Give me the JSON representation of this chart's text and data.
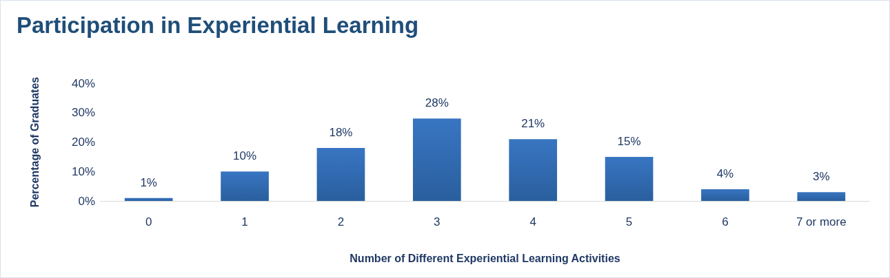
{
  "chart_data": {
    "type": "bar",
    "title": "Participation in Experiential Learning",
    "xlabel": "Number of Different Experiential Learning Activities",
    "ylabel": "Percentage of Graduates",
    "categories": [
      "0",
      "1",
      "2",
      "3",
      "4",
      "5",
      "6",
      "7 or more"
    ],
    "values": [
      1,
      10,
      18,
      28,
      21,
      15,
      4,
      3
    ],
    "value_labels": [
      "1%",
      "10%",
      "18%",
      "28%",
      "21%",
      "15%",
      "4%",
      "3%"
    ],
    "color": "#3875c2",
    "ylim": [
      0,
      40
    ],
    "yticks": [
      {
        "value": 0,
        "label": "0%"
      },
      {
        "value": 10,
        "label": "10%"
      },
      {
        "value": 20,
        "label": "20%"
      },
      {
        "value": 30,
        "label": "30%"
      },
      {
        "value": 40,
        "label": "40%"
      }
    ],
    "grid": false
  }
}
